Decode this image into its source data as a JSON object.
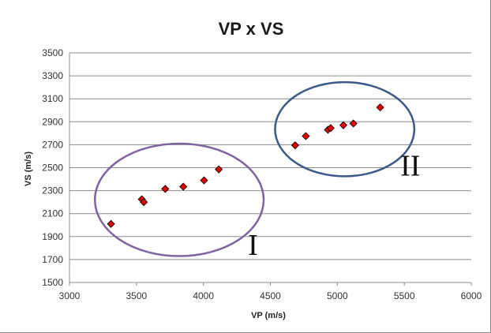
{
  "chart_data": {
    "type": "scatter",
    "title": "VP x VS",
    "xlabel": "VP (m/s)",
    "ylabel": "VS (m/s)",
    "xlim": [
      3000,
      6000
    ],
    "ylim": [
      1500,
      3500
    ],
    "x_ticks": [
      3000,
      3500,
      4000,
      4500,
      5000,
      5500,
      6000
    ],
    "y_ticks": [
      1500,
      1700,
      1900,
      2100,
      2300,
      2500,
      2700,
      2900,
      3100,
      3300,
      3500
    ],
    "grid": "horizontal",
    "marker": {
      "shape": "diamond",
      "fill": "#e00000",
      "stroke": "#000000"
    },
    "points": [
      {
        "x": 3310,
        "y": 2010
      },
      {
        "x": 3540,
        "y": 2225
      },
      {
        "x": 3555,
        "y": 2200
      },
      {
        "x": 3715,
        "y": 2315
      },
      {
        "x": 3850,
        "y": 2335
      },
      {
        "x": 4005,
        "y": 2390
      },
      {
        "x": 4115,
        "y": 2485
      },
      {
        "x": 4685,
        "y": 2695
      },
      {
        "x": 4765,
        "y": 2775
      },
      {
        "x": 4930,
        "y": 2830
      },
      {
        "x": 4950,
        "y": 2845
      },
      {
        "x": 5045,
        "y": 2870
      },
      {
        "x": 5120,
        "y": 2885
      },
      {
        "x": 5320,
        "y": 3025
      }
    ],
    "annotations": [
      {
        "label": "I",
        "ellipse_color": "#8064a2",
        "center": [
          3820,
          2220
        ],
        "radii": [
          630,
          490
        ],
        "label_pos": [
          4370,
          1740
        ]
      },
      {
        "label": "II",
        "ellipse_color": "#3c5a88",
        "center": [
          5055,
          2835
        ],
        "radii": [
          520,
          410
        ],
        "label_pos": [
          5545,
          2430
        ]
      }
    ]
  }
}
